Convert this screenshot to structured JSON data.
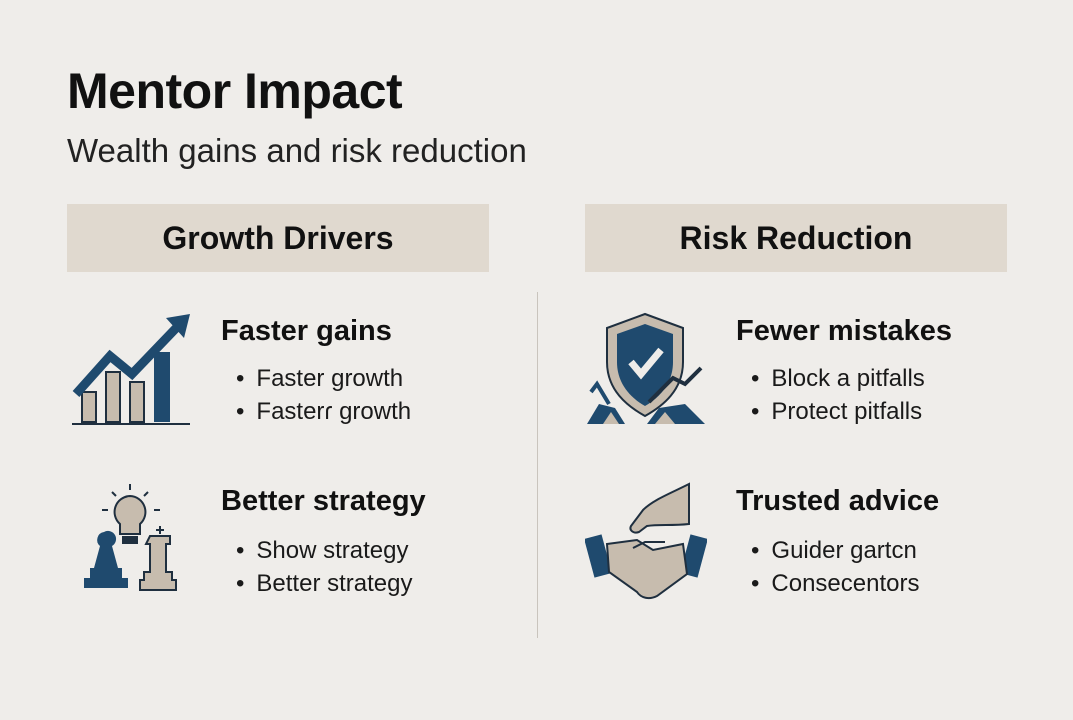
{
  "title": "Mentor Impact",
  "subtitle": "Wealth gains and risk reduction",
  "colors": {
    "background": "#efedea",
    "header_fill": "#e0d9cf",
    "navy": "#1f4a6e",
    "tan": "#c7bcae"
  },
  "columns": [
    {
      "header": "Growth Drivers",
      "items": [
        {
          "icon": "rising-bar-chart-icon",
          "title": "Faster gains",
          "bullets": [
            "Faster growth",
            "Fasterɾ growth"
          ]
        },
        {
          "icon": "lightbulb-chess-icon",
          "title": "Better strategy",
          "bullets": [
            "Show strategy",
            "Better strategy"
          ]
        }
      ]
    },
    {
      "header": "Risk Reduction",
      "items": [
        {
          "icon": "shield-check-icon",
          "title": "Fewer mistakes",
          "bullets": [
            "Block a pitfalls",
            "Protect  pitfalls"
          ]
        },
        {
          "icon": "handshake-icon",
          "title": "Trusted advice",
          "bullets": [
            "Guider gartcn",
            "Consecentors"
          ]
        }
      ]
    }
  ]
}
